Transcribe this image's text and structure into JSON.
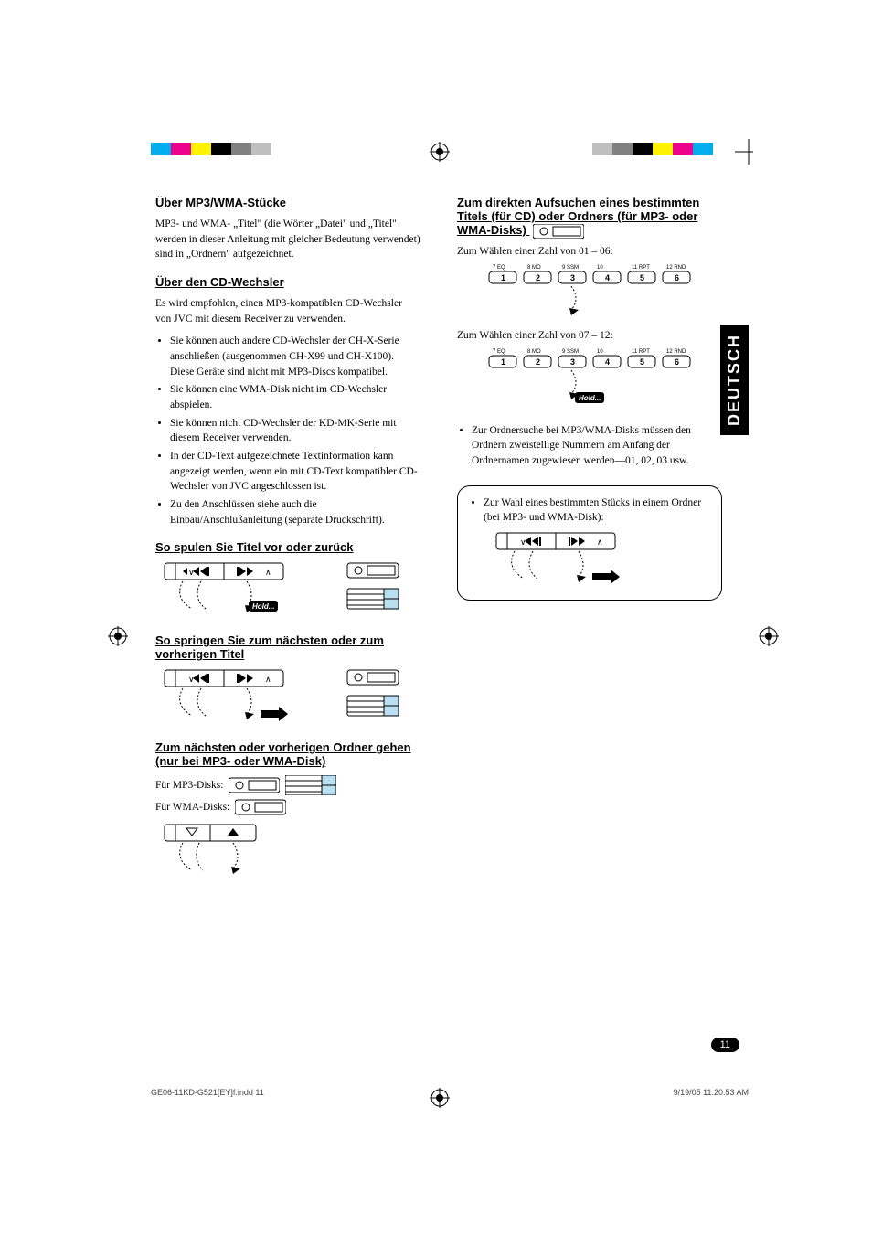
{
  "sideTab": "DEUTSCH",
  "pageNumber": "11",
  "footerLeft": "GE06-11KD-G521[EY]f.indd   11",
  "footerRight": "9/19/05   11:20:53 AM",
  "left": {
    "h1": "Über MP3/WMA-Stücke",
    "p1": "MP3- und WMA- „Titel\" (die Wörter „Datei\" und „Titel\" werden in dieser Anleitung mit gleicher Bedeutung verwendet) sind in „Ordnern\" aufgezeichnet.",
    "h2": "Über den CD-Wechsler",
    "p2": "Es wird empfohlen, einen MP3-kompatiblen CD-Wechsler von JVC mit diesem Receiver zu verwenden.",
    "bullets": [
      "Sie können auch andere CD-Wechsler der CH-X-Serie anschließen (ausgenommen CH-X99 und CH-X100). Diese Geräte sind nicht mit MP3-Discs kompatibel.",
      "Sie können eine WMA-Disk nicht im CD-Wechsler abspielen.",
      "Sie können nicht CD-Wechsler der KD-MK-Serie mit diesem Receiver verwenden.",
      "In der CD-Text aufgezeichnete Textinformation kann angezeigt werden, wenn ein mit CD-Text kompatibler CD-Wechsler von JVC angeschlossen ist.",
      "Zu den Anschlüssen siehe auch die Einbau/Anschlußanleitung (separate Druckschrift)."
    ],
    "h3": "So spulen Sie Titel vor oder zurück",
    "h4": "So springen Sie zum nächsten oder zum vorherigen Titel",
    "h5": "Zum nächsten oder vorherigen Ordner gehen (nur bei MP3- oder WMA-Disk)",
    "mp3Label": "Für MP3-Disks:",
    "wmaLabel": "Für WMA-Disks:"
  },
  "right": {
    "h1": "Zum direkten Aufsuchen eines bestimmten Titels (für CD) oder Ordners (für MP3- oder WMA-Disks)",
    "label1": "Zum Wählen einer Zahl von 01 – 06:",
    "label2": "Zum Wählen einer Zahl von 07 – 12:",
    "note": "Zur Ordnersuche bei MP3/WMA-Disks müssen den Ordnern zweistellige Nummern am Anfang der Ordnernamen zugewiesen werden—01, 02, 03 usw.",
    "calloutText": "Zur Wahl eines bestimmten Stücks in einem Ordner (bei MP3- und WMA-Disk):"
  },
  "buttons": {
    "topLabels": [
      "7 EQ",
      "8 MO",
      "9 SSM",
      "10",
      "11 RPT",
      "12 RND"
    ],
    "nums": [
      "1",
      "2",
      "3",
      "4",
      "5",
      "6"
    ]
  },
  "holdLabel": "Hold...",
  "colors": {
    "black": "#000000",
    "cyan": "#00aeef",
    "magenta": "#ec008c",
    "yellow": "#fff200",
    "gray50": "#808080",
    "gray25": "#bfbfbf"
  }
}
